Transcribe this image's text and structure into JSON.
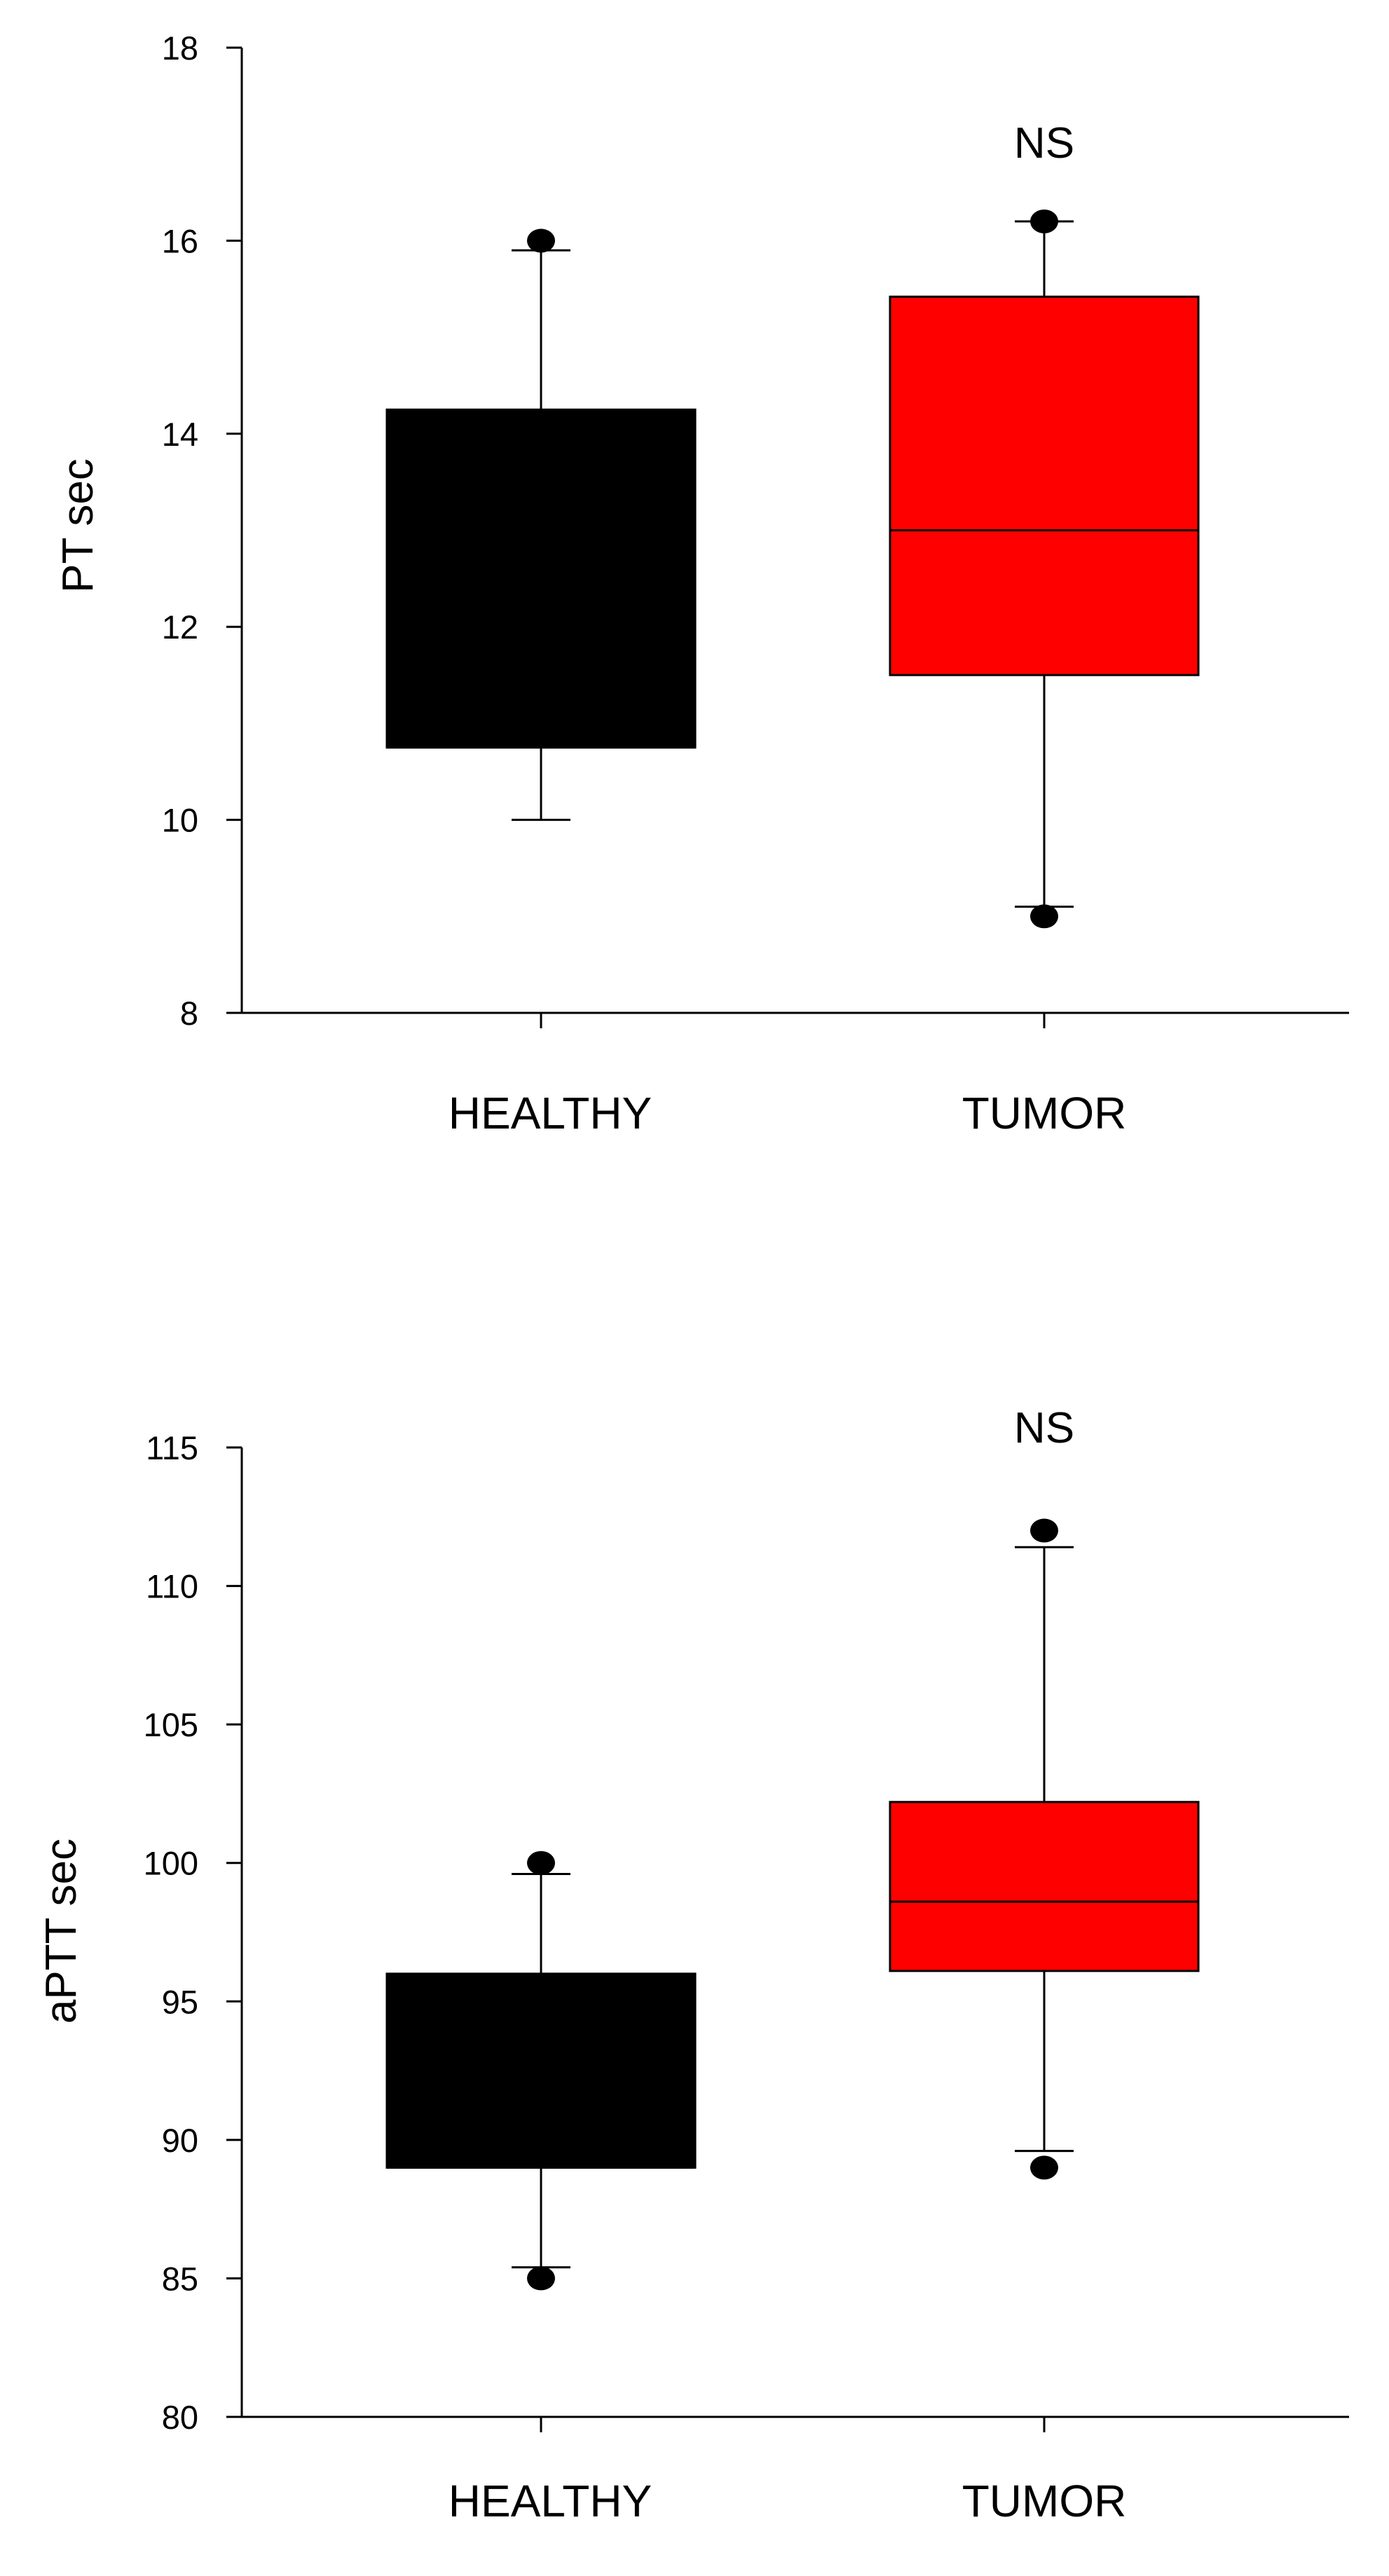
{
  "chart_data": [
    {
      "type": "box",
      "title": "",
      "xlabel": "",
      "ylabel": "PT sec",
      "ylim": [
        8,
        18
      ],
      "yticks": [
        8,
        10,
        12,
        14,
        16,
        18
      ],
      "categories": [
        "HEALTHY",
        "TUMOR"
      ],
      "annotation": "NS",
      "boxes": [
        {
          "name": "HEALTHY",
          "q1": 10.75,
          "median": 10.75,
          "q3": 14.25,
          "whisker_low": 10.0,
          "whisker_high": 15.9,
          "outliers": [
            16.0
          ],
          "color": "#000000"
        },
        {
          "name": "TUMOR",
          "q1": 11.5,
          "median": 13.0,
          "q3": 15.42,
          "whisker_low": 9.1,
          "whisker_high": 16.2,
          "outliers": [
            16.2,
            9.0
          ],
          "color": "#ff0000"
        }
      ]
    },
    {
      "type": "box",
      "title": "",
      "xlabel": "",
      "ylabel": "aPTT sec",
      "ylim": [
        80,
        115
      ],
      "yticks": [
        80,
        85,
        90,
        95,
        100,
        105,
        110,
        115
      ],
      "categories": [
        "HEALTHY",
        "TUMOR"
      ],
      "annotation": "NS",
      "boxes": [
        {
          "name": "HEALTHY",
          "q1": 89.0,
          "median": 89.0,
          "q3": 96.0,
          "whisker_low": 85.4,
          "whisker_high": 99.6,
          "outliers": [
            100.0,
            85.0
          ],
          "color": "#000000"
        },
        {
          "name": "TUMOR",
          "q1": 96.1,
          "median": 98.6,
          "q3": 102.2,
          "whisker_low": 89.6,
          "whisker_high": 111.4,
          "outliers": [
            112.0,
            89.0
          ],
          "color": "#ff0000"
        }
      ]
    }
  ]
}
